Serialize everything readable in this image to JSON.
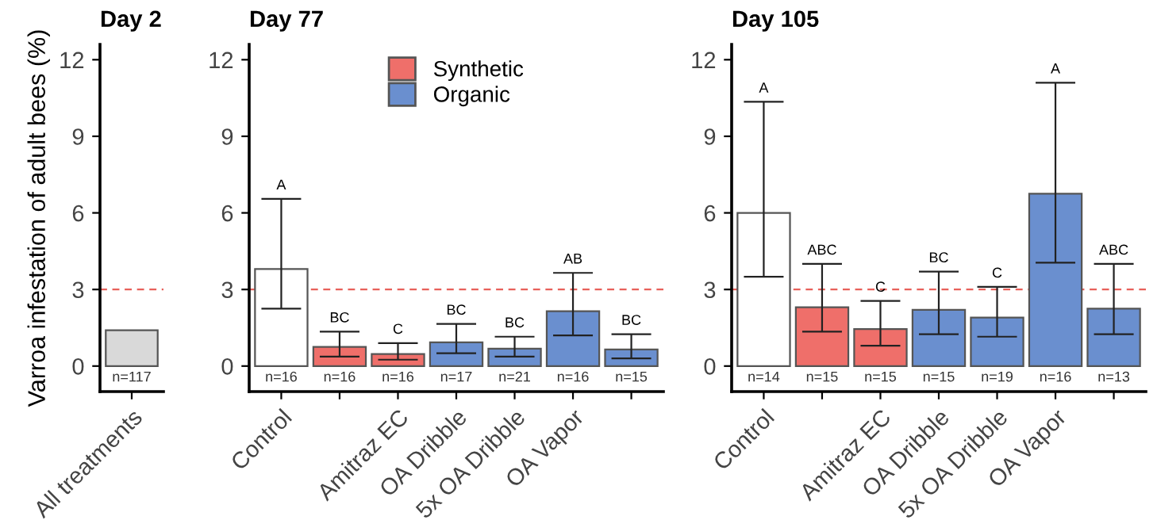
{
  "chart_data": [
    {
      "type": "bar",
      "title": "Day 2",
      "ylabel": "Varroa infestation of adult bees (%)",
      "categories": [
        "All treatments"
      ],
      "series": [
        {
          "color": "#d9d9d9",
          "values": [
            1.4
          ]
        }
      ],
      "annotations": [
        "n=117"
      ],
      "ylim": [
        -1,
        12.6
      ],
      "yticks": [
        0,
        3,
        6,
        9,
        12
      ],
      "grid": false,
      "legend": false,
      "ref_lines": [
        {
          "axis": "y",
          "value": 3,
          "color": "#e8605a",
          "line_style": "dashed"
        }
      ]
    },
    {
      "type": "bar",
      "title": "Day 77",
      "categories": [
        "Control",
        null,
        "Amitraz EC",
        "OA Dribble",
        "5x OA Dribble",
        "OA Vapor",
        null
      ],
      "series": [
        {
          "color": "#ffffff",
          "values": [
            3.8,
            null,
            null,
            null,
            null,
            null,
            null
          ],
          "errors": [
            [
              2.25,
              6.55
            ],
            null,
            null,
            null,
            null,
            null,
            null
          ]
        },
        {
          "name": "Synthetic",
          "color": "#ef6f6a",
          "values": [
            null,
            0.75,
            0.47,
            null,
            null,
            null,
            null
          ],
          "errors": [
            null,
            [
              0.37,
              1.35
            ],
            [
              0.25,
              0.9
            ],
            null,
            null,
            null,
            null
          ]
        },
        {
          "name": "Organic",
          "color": "#6a8fcf",
          "values": [
            null,
            null,
            null,
            0.93,
            0.68,
            2.15,
            0.65
          ],
          "errors": [
            null,
            null,
            null,
            [
              0.5,
              1.65
            ],
            [
              0.37,
              1.15
            ],
            [
              1.2,
              3.65
            ],
            [
              0.3,
              1.25
            ]
          ]
        }
      ],
      "annotations": [
        "n=16",
        "n=16",
        "n=16",
        "n=17",
        "n=21",
        "n=16",
        "n=15",
        {
          "text": "A",
          "y": 6.55
        },
        {
          "text": "BC",
          "y": 1.35
        },
        {
          "text": "C",
          "y": 0.9
        },
        {
          "text": "BC",
          "y": 1.65
        },
        {
          "text": "BC",
          "y": 1.15
        },
        {
          "text": "AB",
          "y": 3.65
        },
        {
          "text": "BC",
          "y": 1.25
        }
      ],
      "ylim": [
        -1,
        12.6
      ],
      "yticks": [
        0,
        3,
        6,
        9,
        12
      ],
      "grid": false,
      "legend": "top",
      "ref_lines": [
        {
          "axis": "y",
          "value": 3,
          "color": "#e8605a",
          "line_style": "dashed"
        }
      ]
    },
    {
      "type": "bar",
      "title": "Day 105",
      "categories": [
        "Control",
        null,
        "Amitraz EC",
        "OA Dribble",
        "5x OA Dribble",
        "OA Vapor",
        null
      ],
      "series": [
        {
          "color": "#ffffff",
          "values": [
            6.0,
            null,
            null,
            null,
            null,
            null,
            null
          ],
          "errors": [
            [
              3.5,
              10.35
            ],
            null,
            null,
            null,
            null,
            null,
            null
          ]
        },
        {
          "color": "#ef6f6a",
          "values": [
            null,
            2.3,
            1.45,
            null,
            null,
            null,
            null
          ],
          "errors": [
            null,
            [
              1.35,
              4.0
            ],
            [
              0.8,
              2.55
            ],
            null,
            null,
            null,
            null
          ]
        },
        {
          "color": "#6a8fcf",
          "values": [
            null,
            null,
            null,
            2.2,
            1.9,
            6.75,
            2.25
          ],
          "errors": [
            null,
            null,
            null,
            [
              1.25,
              3.7
            ],
            [
              1.15,
              3.1
            ],
            [
              4.05,
              11.1
            ],
            [
              1.25,
              4.0
            ]
          ]
        }
      ],
      "annotations": [
        "n=14",
        "n=15",
        "n=15",
        "n=15",
        "n=19",
        "n=16",
        "n=13",
        {
          "text": "A",
          "y": 10.35
        },
        {
          "text": "ABC",
          "y": 4.0
        },
        {
          "text": "C",
          "y": 2.55
        },
        {
          "text": "BC",
          "y": 3.7
        },
        {
          "text": "C",
          "y": 3.1
        },
        {
          "text": "A",
          "y": 11.1
        },
        {
          "text": "ABC",
          "y": 4.0
        }
      ],
      "ylim": [
        -1,
        12.6
      ],
      "yticks": [
        0,
        3,
        6,
        9,
        12
      ],
      "grid": false,
      "legend": false,
      "ref_lines": [
        {
          "axis": "y",
          "value": 3,
          "color": "#e8605a",
          "line_style": "dashed"
        }
      ]
    }
  ]
}
